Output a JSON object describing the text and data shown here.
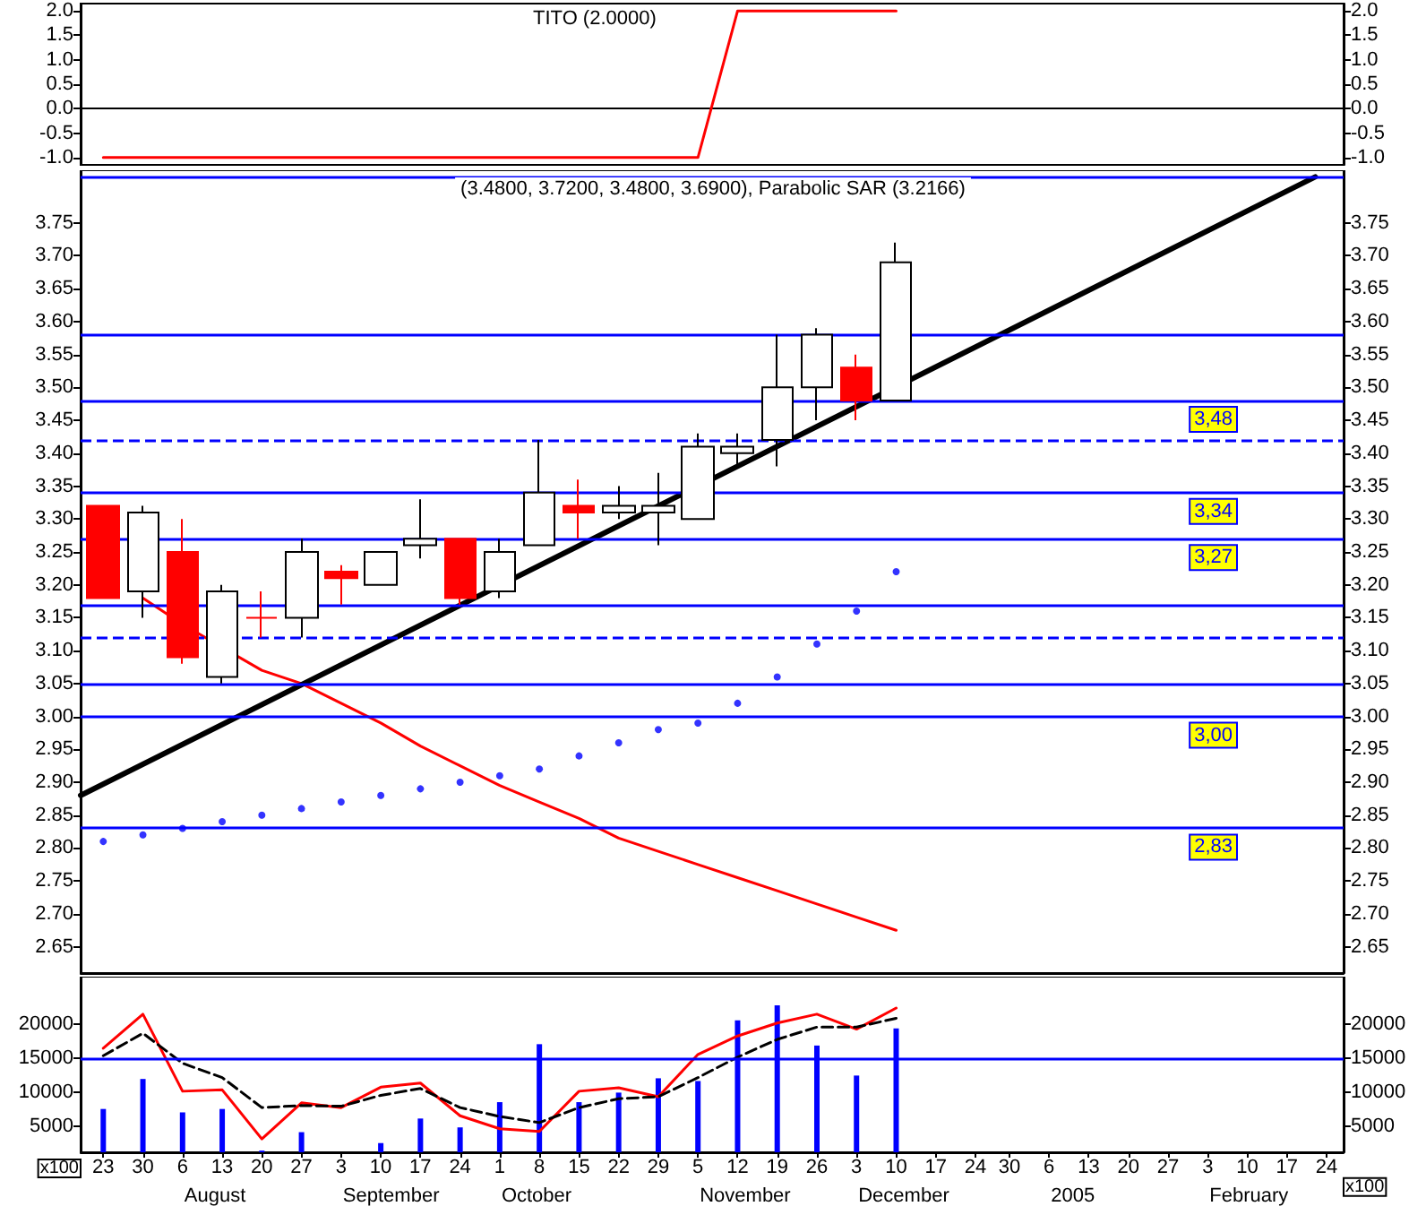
{
  "chart_data": [
    {
      "type": "line",
      "title": "TITO (2.0000)",
      "xlim": [
        "2004-07-19",
        "2005-02-27"
      ],
      "ylim": [
        -1.15,
        2.15
      ],
      "yticks": [
        {
          "value": -1,
          "label": "-1.0"
        },
        -0.5,
        {
          "value": 0,
          "label": "0.0"
        },
        0.5,
        {
          "value": 1,
          "label": "1.0"
        },
        1.5,
        {
          "value": 2,
          "label": "2.0"
        }
      ],
      "y2lim": [
        -1.15,
        2.15
      ],
      "y2ticks": [
        {
          "value": -1,
          "label": "-1.0"
        },
        -0.5,
        {
          "value": 0,
          "label": "0.0"
        },
        0.5,
        {
          "value": 1,
          "label": "1.0"
        },
        1.5,
        {
          "value": 2,
          "label": "2.0"
        }
      ],
      "tick_labels": "y",
      "marker": "none",
      "x": [
        "2004-07-23",
        "2004-07-30",
        "2004-08-06",
        "2004-08-13",
        "2004-08-20",
        "2004-08-27",
        "2004-09-03",
        "2004-09-10",
        "2004-09-17",
        "2004-09-24",
        "2004-10-01",
        "2004-10-08",
        "2004-10-15",
        "2004-10-22",
        "2004-10-29",
        "2004-11-05",
        "2004-11-12",
        "2004-11-19",
        "2004-11-26",
        "2004-12-03",
        "2004-12-10"
      ],
      "series": [
        {
          "color": "#ff0000",
          "values": [
            -1,
            -1,
            -1,
            -1,
            -1,
            -1,
            -1,
            -1,
            -1,
            -1,
            -1,
            -1,
            -1,
            -1,
            -1,
            -1,
            2,
            2,
            2,
            2,
            2
          ]
        }
      ]
    },
    {
      "type": "candlestick",
      "title": "(3.4800, 3.7200, 3.4800, 3.6900), Parabolic SAR (3.2166)",
      "xlim": [
        "2004-07-19",
        "2005-02-27"
      ],
      "ylim": [
        2.61,
        3.83
      ],
      "yticks": [
        2.65,
        {
          "value": 2.7,
          "label": "2.70"
        },
        2.75,
        {
          "value": 2.8,
          "label": "2.80"
        },
        2.85,
        {
          "value": 2.9,
          "label": "2.90"
        },
        2.95,
        {
          "value": 3,
          "label": "3.00"
        },
        3.05,
        {
          "value": 3.1,
          "label": "3.10"
        },
        3.15,
        {
          "value": 3.2,
          "label": "3.20"
        },
        3.25,
        {
          "value": 3.3,
          "label": "3.30"
        },
        3.35,
        {
          "value": 3.4,
          "label": "3.40"
        },
        3.45,
        {
          "value": 3.5,
          "label": "3.50"
        },
        3.55,
        {
          "value": 3.6,
          "label": "3.60"
        },
        3.65,
        {
          "value": 3.7,
          "label": "3.70"
        },
        3.75
      ],
      "y2lim": [
        2.61,
        3.83
      ],
      "y2ticks": [
        2.65,
        {
          "value": 2.7,
          "label": "2.70"
        },
        2.75,
        {
          "value": 2.8,
          "label": "2.80"
        },
        2.85,
        {
          "value": 2.9,
          "label": "2.90"
        },
        2.95,
        {
          "value": 3,
          "label": "3.00"
        },
        3.05,
        {
          "value": 3.1,
          "label": "3.10"
        },
        3.15,
        {
          "value": 3.2,
          "label": "3.20"
        },
        3.25,
        {
          "value": 3.3,
          "label": "3.30"
        },
        3.35,
        {
          "value": 3.4,
          "label": "3.40"
        },
        3.45,
        {
          "value": 3.5,
          "label": "3.50"
        },
        3.55,
        {
          "value": 3.6,
          "label": "3.60"
        },
        3.65,
        {
          "value": 3.7,
          "label": "3.70"
        },
        3.75
      ],
      "tick_labels": "y",
      "marker": "none",
      "x": [
        "2004-07-23",
        "2004-07-30",
        "2004-08-06",
        "2004-08-13",
        "2004-08-20",
        "2004-08-27",
        "2004-09-03",
        "2004-09-10",
        "2004-09-17",
        "2004-09-24",
        "2004-10-01",
        "2004-10-08",
        "2004-10-15",
        "2004-10-22",
        "2004-10-29",
        "2004-11-05",
        "2004-11-12",
        "2004-11-19",
        "2004-11-26",
        "2004-12-03",
        "2004-12-10"
      ],
      "ohlc": [
        [
          3.32,
          3.32,
          3.18,
          3.18
        ],
        [
          3.19,
          3.32,
          3.15,
          3.31
        ],
        [
          3.25,
          3.3,
          3.08,
          3.09
        ],
        [
          3.06,
          3.2,
          3.05,
          3.19
        ],
        [
          3.15,
          3.19,
          3.12,
          3.15
        ],
        [
          3.15,
          3.27,
          3.12,
          3.25
        ],
        [
          3.22,
          3.23,
          3.17,
          3.21
        ],
        [
          3.2,
          3.25,
          3.2,
          3.25
        ],
        [
          3.26,
          3.33,
          3.24,
          3.27
        ],
        [
          3.27,
          3.27,
          3.17,
          3.18
        ],
        [
          3.19,
          3.27,
          3.18,
          3.25
        ],
        [
          3.26,
          3.42,
          3.26,
          3.34
        ],
        [
          3.32,
          3.36,
          3.27,
          3.31
        ],
        [
          3.31,
          3.35,
          3.3,
          3.32
        ],
        [
          3.31,
          3.37,
          3.26,
          3.32
        ],
        [
          3.3,
          3.43,
          3.3,
          3.41
        ],
        [
          3.4,
          3.43,
          3.38,
          3.41
        ],
        [
          3.42,
          3.58,
          3.38,
          3.5
        ],
        [
          3.5,
          3.59,
          3.45,
          3.58
        ],
        [
          3.53,
          3.55,
          3.45,
          3.48
        ],
        [
          3.48,
          3.72,
          3.48,
          3.69
        ]
      ],
      "series": [
        {
          "type": "scatter",
          "marker": "circle",
          "color": "#0000ff",
          "values": [
            2.81,
            2.82,
            2.83,
            2.84,
            2.85,
            2.86,
            2.87,
            2.88,
            2.89,
            2.9,
            2.91,
            2.92,
            2.94,
            2.96,
            2.98,
            2.99,
            3.02,
            3.06,
            3.11,
            3.16,
            3.22
          ]
        },
        {
          "type": "line",
          "color": "#ff0000",
          "values": [
            null,
            3.18,
            3.14,
            null,
            3.07,
            3.05,
            3.02,
            2.99,
            2.955,
            2.925,
            2.895,
            2.87,
            2.845,
            2.815,
            2.795,
            2.775,
            2.755,
            2.735,
            2.715,
            2.695,
            2.675
          ]
        },
        {
          "type": "line",
          "color": "#000000",
          "x": [
            "2004-07-19",
            "2005-02-22"
          ],
          "values": [
            2.88,
            3.82
          ]
        }
      ],
      "ref_lines": [
        {
          "axis": "y",
          "value": 3.82,
          "color": "#0000ff"
        },
        {
          "axis": "y",
          "value": 3.58,
          "color": "#0000ff"
        },
        {
          "axis": "y",
          "value": 3.48,
          "color": "#0000ff",
          "label": "3,48"
        },
        {
          "axis": "y",
          "value": 3.42,
          "color": "#0000ff",
          "line_style": "dashed"
        },
        {
          "axis": "y",
          "value": 3.34,
          "color": "#0000ff",
          "label": "3,34"
        },
        {
          "axis": "y",
          "value": 3.27,
          "color": "#0000ff",
          "label": "3,27"
        },
        {
          "axis": "y",
          "value": 3.17,
          "color": "#0000ff"
        },
        {
          "axis": "y",
          "value": 3.12,
          "color": "#0000ff",
          "line_style": "dashed"
        },
        {
          "axis": "y",
          "value": 3.05,
          "color": "#0000ff"
        },
        {
          "axis": "y",
          "value": 3.0,
          "color": "#0000ff",
          "label": "3,00"
        },
        {
          "axis": "y",
          "value": 2.83,
          "color": "#0000ff",
          "label": "2,83"
        }
      ]
    },
    {
      "type": "bar",
      "ylabel": "x100",
      "y2label": "x100",
      "xlim": [
        "2004-07-19",
        "2005-02-27"
      ],
      "ylim": [
        1250,
        27000
      ],
      "yticks": [
        5000,
        10000,
        15000,
        20000
      ],
      "y2lim": [
        1250,
        27000
      ],
      "y2ticks": [
        5000,
        10000,
        15000,
        20000
      ],
      "marker": "none",
      "color": "#0000ff",
      "xticks": [
        {
          "value": "2004-07-23",
          "label": "23"
        },
        {
          "value": "2004-07-30",
          "label": "30"
        },
        {
          "value": "2004-08-06",
          "label": "6"
        },
        {
          "value": "2004-08-13",
          "label": "13"
        },
        {
          "value": "2004-08-20",
          "label": "20"
        },
        {
          "value": "2004-08-27",
          "label": "27"
        },
        {
          "value": "2004-09-03",
          "label": "3"
        },
        {
          "value": "2004-09-10",
          "label": "10"
        },
        {
          "value": "2004-09-17",
          "label": "17"
        },
        {
          "value": "2004-09-24",
          "label": "24"
        },
        {
          "value": "2004-10-01",
          "label": "1"
        },
        {
          "value": "2004-10-08",
          "label": "8"
        },
        {
          "value": "2004-10-15",
          "label": "15"
        },
        {
          "value": "2004-10-22",
          "label": "22"
        },
        {
          "value": "2004-10-29",
          "label": "29"
        },
        {
          "value": "2004-11-05",
          "label": "5"
        },
        {
          "value": "2004-11-12",
          "label": "12"
        },
        {
          "value": "2004-11-19",
          "label": "19"
        },
        {
          "value": "2004-11-26",
          "label": "26"
        },
        {
          "value": "2004-12-03",
          "label": "3"
        },
        {
          "value": "2004-12-10",
          "label": "10"
        },
        {
          "value": "2004-12-17",
          "label": "17"
        },
        {
          "value": "2004-12-24",
          "label": "24"
        },
        {
          "value": "2004-12-30",
          "label": "30"
        },
        {
          "value": "2005-01-06",
          "label": "6"
        },
        {
          "value": "2005-01-13",
          "label": "13"
        },
        {
          "value": "2005-01-20",
          "label": "20"
        },
        {
          "value": "2005-01-27",
          "label": "27"
        },
        {
          "value": "2005-02-03",
          "label": "3"
        },
        {
          "value": "2005-02-10",
          "label": "10"
        },
        {
          "value": "2005-02-17",
          "label": "17"
        },
        {
          "value": "2005-02-24",
          "label": "24"
        }
      ],
      "x": [
        "2004-07-23",
        "2004-07-30",
        "2004-08-06",
        "2004-08-13",
        "2004-08-20",
        "2004-08-27",
        "2004-09-03",
        "2004-09-10",
        "2004-09-17",
        "2004-09-24",
        "2004-10-01",
        "2004-10-08",
        "2004-10-15",
        "2004-10-22",
        "2004-10-29",
        "2004-11-05",
        "2004-11-12",
        "2004-11-19",
        "2004-11-26",
        "2004-12-03",
        "2004-12-10"
      ],
      "values": [
        7600,
        12000,
        7100,
        7600,
        1500,
        4200,
        null,
        2600,
        6200,
        4900,
        8600,
        17100,
        8600,
        10000,
        12100,
        11700,
        20600,
        22800,
        16900,
        12500,
        19400
      ],
      "series": [
        {
          "type": "line",
          "color": "#ff0000",
          "values": [
            16500,
            21500,
            10200,
            10400,
            3200,
            8500,
            7800,
            10800,
            11400,
            6600,
            4700,
            4300,
            10200,
            10700,
            9400,
            15600,
            18300,
            20200,
            21500,
            19300,
            22400
          ]
        },
        {
          "type": "line",
          "color": "#000000",
          "line_style": "dashed",
          "values": [
            15400,
            18700,
            14300,
            12200,
            7800,
            8100,
            8000,
            9600,
            10600,
            7800,
            6500,
            5600,
            7800,
            9100,
            9400,
            12200,
            15200,
            17800,
            19600,
            19600,
            20900
          ]
        }
      ],
      "ref_lines": [
        {
          "axis": "y",
          "value": 15000,
          "color": "#0000ff"
        }
      ],
      "annotations": [
        "August",
        "September",
        "October",
        "November",
        "December",
        "2005",
        "February"
      ]
    }
  ]
}
